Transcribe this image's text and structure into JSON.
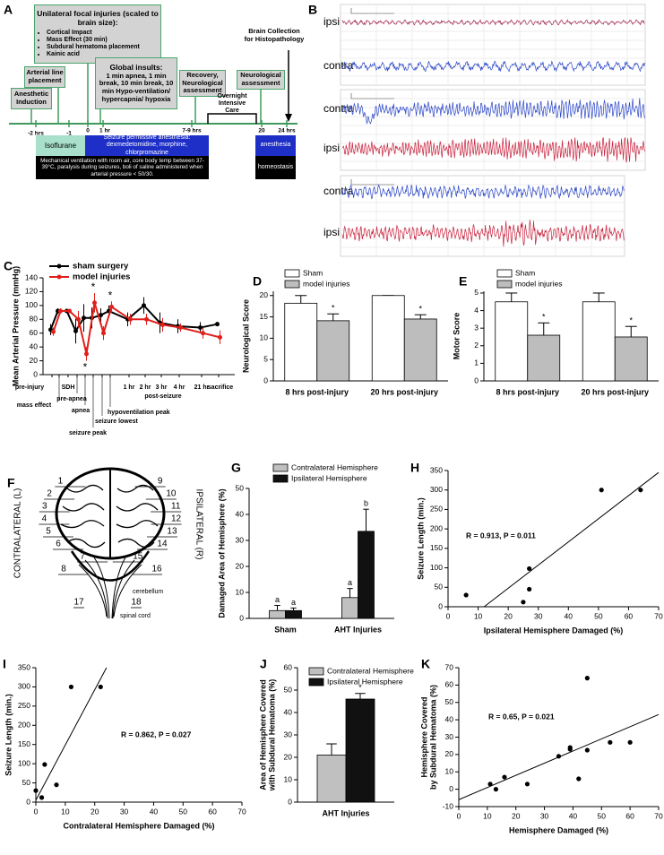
{
  "timeline": {
    "panel": "A",
    "injury_box": {
      "title": "Unilateral focal injuries (scaled to brain size):",
      "items": [
        "Cortical Impact",
        "Mass Effect (30 min)",
        "Subdural hematoma placement",
        "Kainic acid"
      ]
    },
    "arterial": "Arterial line placement",
    "induction": "Anesthetic Induction",
    "global": {
      "title": "Global insults:",
      "text": "1 min apnea, 1 min break, 10 min break, 10 min Hypo-ventilation/ hypercapnia/ hypoxia"
    },
    "recovery": "Recovery, Neurological assessment",
    "neuro": "Neurological assessment",
    "collection": "Brain Collection for Histopathology",
    "care": "Overnight Intensive Care",
    "isoflurane": "Isoflurane",
    "seizure_anesthesia": "Seizure permissive anesthesia: dexmedetomidine, morphine, chlorpromazine",
    "ventilation": "Mechanical ventilation with room air, core body temp between 37-39°C, paralysis during seizures, boli of saline administered when arterial pressure < 50/30.",
    "anesthesia": "anesthesia",
    "homeostasis": "homeostasis",
    "ticks": [
      "-2 hrs",
      "-1",
      "0",
      "1 hr",
      "7-9 hrs",
      "20",
      "24 hrs"
    ]
  },
  "eeg": {
    "panel": "B",
    "traces": [
      {
        "label": "ipsi",
        "color": "#a3254f"
      },
      {
        "label": "contra",
        "color": "#2a46c8"
      },
      {
        "label": "contra",
        "color": "#2a46c8"
      },
      {
        "label": "ipsi",
        "color": "#c8203c"
      },
      {
        "label": "contra",
        "color": "#2a46c8"
      },
      {
        "label": "ipsi",
        "color": "#c8203c"
      }
    ]
  },
  "brain": {
    "panel": "F",
    "left": "CONTRALATERAL (L)",
    "right": "IPSILATERAL (R)",
    "regions": [
      "1",
      "2",
      "3",
      "4",
      "5",
      "6",
      "7",
      "8",
      "9",
      "10",
      "11",
      "12",
      "13",
      "14",
      "15",
      "16",
      "17",
      "18"
    ],
    "cerebellum": "cerebellum",
    "spinal_cord": "spinal cord"
  },
  "chart_data": [
    {
      "type": "line",
      "panel": "C",
      "ylabel": "Mean Arterial Pressure (mmHg)",
      "categories": [
        "pre-injury",
        "mass effect",
        "SDH",
        "pre-apnea",
        "apnea",
        "seizure peak",
        "seizure lowest",
        "hypoventilation peak",
        "1 hr",
        "2 hr",
        "3 hr",
        "4 hr",
        "21 hr",
        "sacrifice"
      ],
      "note": "post-seizure",
      "series": [
        {
          "name": "sham surgery",
          "color": "#000000",
          "values": [
            65,
            92,
            92,
            63,
            82,
            82,
            86,
            92,
            80,
            100,
            75,
            70,
            68,
            73
          ],
          "errors": [
            8,
            4,
            3,
            18,
            20,
            15,
            10,
            8,
            10,
            12,
            15,
            10,
            8,
            3
          ]
        },
        {
          "name": "model injuries",
          "color": "#e0201b",
          "values": [
            62,
            92,
            92,
            80,
            30,
            104,
            60,
            98,
            80,
            80,
            72,
            68,
            60,
            54
          ],
          "errors": [
            6,
            4,
            3,
            12,
            10,
            14,
            10,
            8,
            8,
            8,
            10,
            6,
            8,
            10
          ]
        }
      ],
      "annotations": [
        {
          "text": "*",
          "series": "model injuries",
          "category": "apnea"
        },
        {
          "text": "*",
          "series": "model injuries",
          "category": "seizure peak"
        },
        {
          "text": "*",
          "series": "model injuries",
          "category": "hypoventilation peak"
        }
      ],
      "ylim": [
        0,
        140
      ],
      "yticks": [
        0,
        20,
        40,
        60,
        80,
        100,
        120,
        140
      ]
    },
    {
      "type": "bar",
      "panel": "D",
      "ylabel": "Neurological Score",
      "categories": [
        "8 hrs post-injury",
        "20 hrs post-injury"
      ],
      "series": [
        {
          "name": "Sham",
          "color": "#ffffff",
          "values": [
            18.2,
            20
          ],
          "errors": [
            1.8,
            0
          ]
        },
        {
          "name": "model injuries",
          "color": "#bdbdbd",
          "values": [
            14.1,
            14.5
          ],
          "errors": [
            1.6,
            1.0
          ]
        }
      ],
      "annotations": [
        {
          "text": "*",
          "series": "model injuries",
          "category": "8 hrs post-injury"
        },
        {
          "text": "*",
          "series": "model injuries",
          "category": "20 hrs post-injury"
        }
      ],
      "ylim": [
        0,
        21
      ],
      "yticks": [
        0,
        5,
        10,
        15,
        20
      ]
    },
    {
      "type": "bar",
      "panel": "E",
      "ylabel": "Motor Score",
      "categories": [
        "8 hrs post-injury",
        "20 hrs post-injury"
      ],
      "series": [
        {
          "name": "Sham",
          "color": "#ffffff",
          "values": [
            4.5,
            4.5
          ],
          "errors": [
            0.5,
            0.5
          ]
        },
        {
          "name": "model injuries",
          "color": "#bdbdbd",
          "values": [
            2.6,
            2.5
          ],
          "errors": [
            0.7,
            0.6
          ]
        }
      ],
      "annotations": [
        {
          "text": "*",
          "series": "model injuries",
          "category": "8 hrs post-injury"
        },
        {
          "text": "*",
          "series": "model injuries",
          "category": "20 hrs post-injury"
        }
      ],
      "ylim": [
        0,
        5.1
      ],
      "yticks": [
        0,
        1,
        2,
        3,
        4,
        5
      ]
    },
    {
      "type": "bar",
      "panel": "G",
      "ylabel": "Damaged Area of Hemisphere (%)",
      "categories": [
        "Sham",
        "AHT Injuries"
      ],
      "series": [
        {
          "name": "Contralateral Hemisphere",
          "color": "#c0c0c0",
          "values": [
            3,
            8
          ],
          "errors": [
            2,
            3.5
          ]
        },
        {
          "name": "Ipsilateral Hemisphere",
          "color": "#111111",
          "values": [
            3,
            33.5
          ],
          "errors": [
            1,
            8.5
          ]
        }
      ],
      "annotations": [
        {
          "text": "a",
          "series": "Contralateral Hemisphere",
          "category": "Sham"
        },
        {
          "text": "a",
          "series": "Ipsilateral Hemisphere",
          "category": "Sham"
        },
        {
          "text": "a",
          "series": "Contralateral Hemisphere",
          "category": "AHT Injuries"
        },
        {
          "text": "b",
          "series": "Ipsilateral Hemisphere",
          "category": "AHT Injuries"
        }
      ],
      "ylim": [
        0,
        50
      ],
      "yticks": [
        0,
        10,
        20,
        30,
        40,
        50
      ]
    },
    {
      "type": "scatter",
      "panel": "H",
      "ylabel": "Seizure Length (min.)",
      "xlabel": "Ipsilateral Hemisphere Damaged (%)",
      "x": [
        6,
        25,
        27,
        27,
        51,
        64
      ],
      "y": [
        30,
        12,
        45,
        98,
        300,
        300
      ],
      "trend": {
        "x": [
          12,
          70
        ],
        "y": [
          0,
          345
        ]
      },
      "annotation": "R = 0.913, P = 0.011",
      "xlim": [
        0,
        70
      ],
      "xticks": [
        0,
        10,
        20,
        30,
        40,
        50,
        60,
        70
      ],
      "ylim": [
        0,
        350
      ],
      "yticks": [
        0,
        50,
        100,
        150,
        200,
        250,
        300,
        350
      ]
    },
    {
      "type": "scatter",
      "panel": "I",
      "ylabel": "Seizure Length (min.)",
      "xlabel": "Contralateral Hemisphere Damaged (%)",
      "x": [
        0,
        2,
        3,
        7,
        12,
        22
      ],
      "y": [
        30,
        12,
        98,
        45,
        300,
        300
      ],
      "trend": {
        "x": [
          0,
          24
        ],
        "y": [
          5,
          350
        ]
      },
      "annotation": "R = 0.862, P = 0.027",
      "xlim": [
        0,
        70
      ],
      "xticks": [
        0,
        10,
        20,
        30,
        40,
        50,
        60,
        70
      ],
      "ylim": [
        0,
        350
      ],
      "yticks": [
        0,
        50,
        100,
        150,
        200,
        250,
        300,
        350
      ]
    },
    {
      "type": "bar",
      "panel": "J",
      "ylabel": [
        "Area of Hemisphere Covered",
        "with Subdural Hematoma (%)"
      ],
      "categories": [
        "AHT Injuries"
      ],
      "series": [
        {
          "name": "Contralateral Hemisphere",
          "color": "#c0c0c0",
          "values": [
            21
          ],
          "errors": [
            5
          ]
        },
        {
          "name": "Ipsilateral Hemisphere",
          "color": "#111111",
          "values": [
            46
          ],
          "errors": [
            2.5
          ]
        }
      ],
      "annotations": [
        {
          "text": "*",
          "series": "Ipsilateral Hemisphere",
          "category": "AHT Injuries"
        }
      ],
      "ylim": [
        0,
        60
      ],
      "yticks": [
        0,
        10,
        20,
        30,
        40,
        50,
        60
      ]
    },
    {
      "type": "scatter",
      "panel": "K",
      "ylabel": [
        "Hemisphere Covered",
        "by Subdural Hematoma (%)"
      ],
      "xlabel": "Hemisphere Damaged (%)",
      "x": [
        11,
        13,
        16,
        24,
        35,
        39,
        39,
        42,
        45,
        45,
        53,
        60
      ],
      "y": [
        3,
        0,
        7,
        3,
        19,
        24,
        23,
        6,
        22.5,
        64,
        27,
        27
      ],
      "trend": {
        "x": [
          0,
          70
        ],
        "y": [
          -6,
          43
        ]
      },
      "annotation": "R = 0.65, P = 0.021",
      "xlim": [
        0,
        70
      ],
      "xticks": [
        0,
        10,
        20,
        30,
        40,
        50,
        60,
        70
      ],
      "ylim": [
        -10,
        70
      ],
      "yticks": [
        -10,
        0,
        10,
        20,
        30,
        40,
        50,
        60,
        70
      ]
    }
  ]
}
